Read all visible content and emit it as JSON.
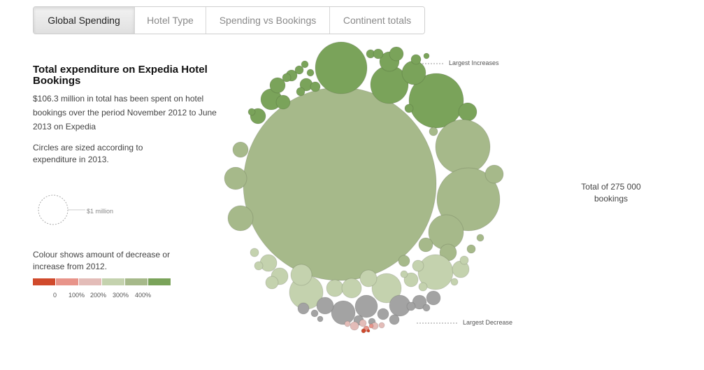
{
  "tabs": [
    {
      "label": "Global Spending",
      "active": true
    },
    {
      "label": "Hotel Type",
      "active": false
    },
    {
      "label": "Spending vs Bookings",
      "active": false
    },
    {
      "label": "Continent totals",
      "active": false
    }
  ],
  "panel": {
    "title": "Total expenditure on Expedia Hotel Bookings",
    "description": "$106.3 million in total has been spent on hotel bookings over the period November 2012 to June 2013 on Expedia",
    "size_note": "Circles are sized according to expenditure in 2013.",
    "size_legend_label": "$1 million",
    "colour_note": "Colour shows amount of decrease or increase from 2012.",
    "colour_scale": [
      "#d04a2c",
      "#e8948a",
      "#e3bcb8",
      "#c4d2ae",
      "#a6b98a",
      "#7aa35a"
    ],
    "colour_ticks": [
      "0",
      "100%",
      "200%",
      "300%",
      "400%"
    ]
  },
  "annotations": {
    "increases": "Largest Increases",
    "decrease": "Largest Decrease",
    "total": "Total of 275 000 bookings"
  },
  "chart_data": {
    "type": "bubble",
    "title": "Total expenditure on Expedia Hotel Bookings",
    "total_spending_usd_millions": 106.3,
    "total_bookings": 275000,
    "size_encoding": "expenditure in 2013",
    "colour_encoding": "change from 2012",
    "legend_reference": "$1 million",
    "colour_categories": [
      "large decrease",
      "decrease",
      "slight decrease",
      "slight increase",
      "increase",
      "large increase"
    ]
  }
}
